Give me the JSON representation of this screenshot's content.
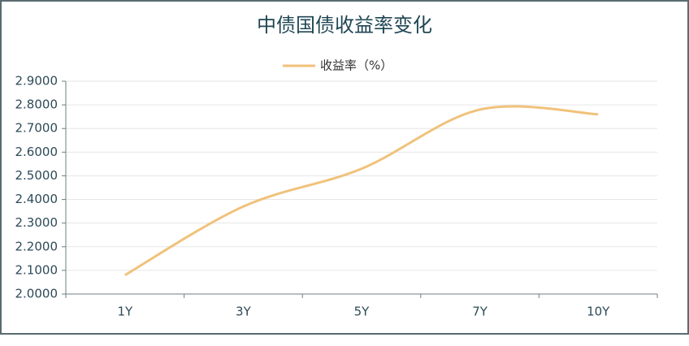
{
  "chart_data": {
    "type": "line",
    "title": "中债国债收益率变化",
    "categories": [
      "1Y",
      "3Y",
      "5Y",
      "7Y",
      "10Y"
    ],
    "series": [
      {
        "name": "收益率（%）",
        "color": "#f0c27b",
        "values": [
          2.08,
          2.37,
          2.53,
          2.78,
          2.76
        ]
      }
    ],
    "ylim": [
      2.0,
      2.9
    ],
    "yticks": [
      {
        "value": 2.0,
        "label": "2.0000"
      },
      {
        "value": 2.1,
        "label": "2.1000"
      },
      {
        "value": 2.2,
        "label": "2.2000"
      },
      {
        "value": 2.3,
        "label": "2.3000"
      },
      {
        "value": 2.4,
        "label": "2.4000"
      },
      {
        "value": 2.5,
        "label": "2.5000"
      },
      {
        "value": 2.6,
        "label": "2.6000"
      },
      {
        "value": 2.7,
        "label": "2.7000"
      },
      {
        "value": 2.8,
        "label": "2.8000"
      },
      {
        "value": 2.9,
        "label": "2.9000"
      }
    ],
    "grid": true,
    "smooth": true,
    "legend": "top"
  }
}
